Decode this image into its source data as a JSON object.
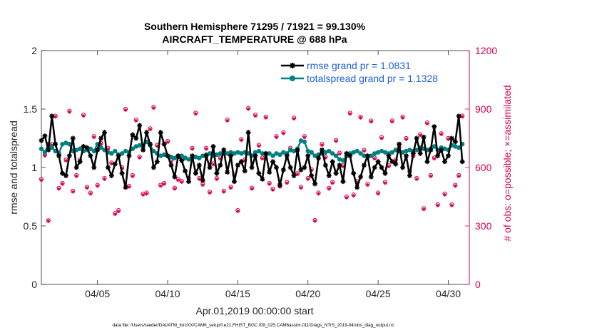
{
  "chart_data": {
    "type": "line",
    "title": "Southern Hemisphere 71295 / 71921 = 99.130%",
    "subtitle": "AIRCRAFT_TEMPERATURE @ 688 hPa",
    "xlabel": "Apr.01,2019 00:00:00 start",
    "ylabel": "rmse and totalspread",
    "y2label": "# of obs: o=possible; ×=assimilated",
    "footer": "data file: /Users/raeder/DAI/ATM_forcXX/CAM6_setup/f.e21.FHIST_BGC.f09_025.CAM6assim.011/Diags_NTrS_2019-04/obs_diag_output.nc",
    "xlim": [
      1,
      31.5
    ],
    "ylim": [
      0,
      2
    ],
    "y2lim": [
      0,
      1200
    ],
    "x_ticks": [
      5,
      10,
      15,
      20,
      25,
      30
    ],
    "x_tick_labels": [
      "04/05",
      "04/10",
      "04/15",
      "04/20",
      "04/25",
      "04/30"
    ],
    "y_ticks": [
      0,
      0.5,
      1,
      1.5,
      2
    ],
    "y_tick_labels": [
      "0",
      "0.5",
      "1",
      "1.5",
      "2"
    ],
    "y2_ticks": [
      0,
      300,
      600,
      900,
      1200
    ],
    "y2_tick_labels": [
      "0",
      "300",
      "600",
      "900",
      "1200"
    ],
    "legend_position": "top-right",
    "colors": {
      "rmse": "#000000",
      "spread": "#008080",
      "obs": "#d6004e",
      "axis": "#262626"
    },
    "series": [
      {
        "name": "rmse grand pr = 1.0831",
        "axis": "left",
        "x": [
          1.0,
          1.25,
          1.5,
          1.75,
          2.0,
          2.25,
          2.5,
          2.75,
          3.0,
          3.25,
          3.5,
          3.75,
          4.0,
          4.25,
          4.5,
          4.75,
          5.0,
          5.25,
          5.5,
          5.75,
          6.0,
          6.25,
          6.5,
          6.75,
          7.0,
          7.25,
          7.5,
          7.75,
          8.0,
          8.25,
          8.5,
          8.75,
          9.0,
          9.25,
          9.5,
          9.75,
          10.0,
          10.25,
          10.5,
          10.75,
          11.0,
          11.25,
          11.5,
          11.75,
          12.0,
          12.25,
          12.5,
          12.75,
          13.0,
          13.25,
          13.5,
          13.75,
          14.0,
          14.25,
          14.5,
          14.75,
          15.0,
          15.25,
          15.5,
          15.75,
          16.0,
          16.25,
          16.5,
          16.75,
          17.0,
          17.25,
          17.5,
          17.75,
          18.0,
          18.25,
          18.5,
          18.75,
          19.0,
          19.25,
          19.5,
          19.75,
          20.0,
          20.25,
          20.5,
          20.75,
          21.0,
          21.25,
          21.5,
          21.75,
          22.0,
          22.25,
          22.5,
          22.75,
          23.0,
          23.25,
          23.5,
          23.75,
          24.0,
          24.25,
          24.5,
          24.75,
          25.0,
          25.25,
          25.5,
          25.75,
          26.0,
          26.25,
          26.5,
          26.75,
          27.0,
          27.25,
          27.5,
          27.75,
          28.0,
          28.25,
          28.5,
          28.75,
          29.0,
          29.25,
          29.5,
          29.75,
          30.0,
          30.25,
          30.5,
          30.75,
          31.0
        ],
        "values": [
          1.23,
          1.27,
          1.15,
          1.44,
          1.2,
          1.1,
          0.95,
          0.93,
          1.1,
          1.25,
          1.0,
          1.05,
          1.18,
          1.17,
          1.1,
          1.0,
          1.15,
          1.25,
          1.3,
          1.0,
          0.93,
          1.03,
          1.1,
          0.95,
          0.83,
          1.1,
          1.28,
          1.25,
          1.36,
          1.15,
          1.3,
          1.2,
          1.0,
          1.05,
          1.3,
          1.2,
          1.1,
          1.02,
          0.92,
          1.1,
          1.06,
          0.97,
          0.88,
          1.1,
          0.95,
          1.02,
          0.89,
          1.1,
          1.0,
          1.18,
          0.95,
          1.02,
          1.15,
          0.96,
          1.1,
          0.88,
          1.02,
          1.05,
          0.97,
          1.3,
          1.0,
          1.1,
          0.95,
          0.9,
          1.12,
          0.96,
          1.05,
          1.0,
          0.85,
          0.98,
          1.1,
          1.0,
          0.93,
          1.15,
          0.98,
          1.0,
          1.1,
          0.93,
          0.86,
          1.08,
          1.15,
          1.02,
          0.93,
          1.05,
          0.95,
          1.02,
          0.88,
          1.12,
          1.1,
          0.95,
          0.83,
          0.92,
          1.02,
          1.1,
          0.92,
          1.0,
          1.05,
          1.0,
          0.95,
          1.1,
          1.05,
          1.03,
          1.2,
          1.0,
          1.1,
          0.93,
          1.12,
          1.25,
          1.12,
          1.26,
          1.05,
          1.15,
          1.35,
          1.1,
          1.15,
          1.05,
          1.1,
          1.25,
          1.22,
          1.44,
          1.05
        ]
      },
      {
        "name": "totalspread grand pr = 1.1328",
        "axis": "left",
        "x": [
          1.0,
          1.25,
          1.5,
          1.75,
          2.0,
          2.25,
          2.5,
          2.75,
          3.0,
          3.25,
          3.5,
          3.75,
          4.0,
          4.25,
          4.5,
          4.75,
          5.0,
          5.25,
          5.5,
          5.75,
          6.0,
          6.25,
          6.5,
          6.75,
          7.0,
          7.25,
          7.5,
          7.75,
          8.0,
          8.25,
          8.5,
          8.75,
          9.0,
          9.25,
          9.5,
          9.75,
          10.0,
          10.25,
          10.5,
          10.75,
          11.0,
          11.25,
          11.5,
          11.75,
          12.0,
          12.25,
          12.5,
          12.75,
          13.0,
          13.25,
          13.5,
          13.75,
          14.0,
          14.25,
          14.5,
          14.75,
          15.0,
          15.25,
          15.5,
          15.75,
          16.0,
          16.25,
          16.5,
          16.75,
          17.0,
          17.25,
          17.5,
          17.75,
          18.0,
          18.25,
          18.5,
          18.75,
          19.0,
          19.25,
          19.5,
          19.75,
          20.0,
          20.25,
          20.5,
          20.75,
          21.0,
          21.25,
          21.5,
          21.75,
          22.0,
          22.25,
          22.5,
          22.75,
          23.0,
          23.25,
          23.5,
          23.75,
          24.0,
          24.25,
          24.5,
          24.75,
          25.0,
          25.25,
          25.5,
          25.75,
          26.0,
          26.25,
          26.5,
          26.75,
          27.0,
          27.25,
          27.5,
          27.75,
          28.0,
          28.25,
          28.5,
          28.75,
          29.0,
          29.25,
          29.5,
          29.75,
          30.0,
          30.25,
          30.5,
          30.75,
          31.0
        ],
        "values": [
          1.16,
          1.13,
          1.2,
          1.17,
          1.14,
          1.12,
          1.2,
          1.21,
          1.2,
          1.14,
          1.15,
          1.16,
          1.14,
          1.15,
          1.16,
          1.14,
          1.2,
          1.17,
          1.15,
          1.13,
          1.12,
          1.14,
          1.11,
          1.12,
          1.14,
          1.13,
          1.16,
          1.18,
          1.19,
          1.18,
          1.22,
          1.19,
          1.14,
          1.12,
          1.1,
          1.11,
          1.1,
          1.09,
          1.08,
          1.09,
          1.1,
          1.08,
          1.07,
          1.08,
          1.09,
          1.08,
          1.1,
          1.11,
          1.12,
          1.1,
          1.11,
          1.12,
          1.13,
          1.12,
          1.13,
          1.12,
          1.13,
          1.12,
          1.13,
          1.12,
          1.1,
          1.13,
          1.14,
          1.12,
          1.11,
          1.12,
          1.1,
          1.12,
          1.11,
          1.13,
          1.12,
          1.15,
          1.14,
          1.16,
          1.23,
          1.22,
          1.14,
          1.13,
          1.1,
          1.11,
          1.12,
          1.13,
          1.14,
          1.12,
          1.1,
          1.07,
          1.06,
          1.1,
          1.12,
          1.13,
          1.14,
          1.12,
          1.1,
          1.09,
          1.1,
          1.12,
          1.13,
          1.14,
          1.13,
          1.12,
          1.13,
          1.15,
          1.14,
          1.13,
          1.14,
          1.15,
          1.14,
          1.15,
          1.17,
          1.16,
          1.15,
          1.16,
          1.18,
          1.15,
          1.17,
          1.16,
          1.15,
          1.19,
          1.18,
          1.17,
          1.2
        ]
      },
      {
        "name": "possible",
        "axis": "right",
        "marker": "circle",
        "x": [
          1.0,
          1.25,
          1.5,
          1.75,
          2.0,
          2.25,
          2.5,
          2.75,
          3.0,
          3.25,
          3.5,
          3.75,
          4.0,
          4.25,
          4.5,
          4.75,
          5.0,
          5.25,
          5.5,
          5.75,
          6.0,
          6.25,
          6.5,
          6.75,
          7.0,
          7.25,
          7.5,
          7.75,
          8.0,
          8.25,
          8.5,
          8.75,
          9.0,
          9.25,
          9.5,
          9.75,
          10.0,
          10.25,
          10.5,
          10.75,
          11.0,
          11.25,
          11.5,
          11.75,
          12.0,
          12.25,
          12.5,
          12.75,
          13.0,
          13.25,
          13.5,
          13.75,
          14.0,
          14.25,
          14.5,
          14.75,
          15.0,
          15.25,
          15.5,
          15.75,
          16.0,
          16.25,
          16.5,
          16.75,
          17.0,
          17.25,
          17.5,
          17.75,
          18.0,
          18.25,
          18.5,
          18.75,
          19.0,
          19.25,
          19.5,
          19.75,
          20.0,
          20.25,
          20.5,
          20.75,
          21.0,
          21.25,
          21.5,
          21.75,
          22.0,
          22.25,
          22.5,
          22.75,
          23.0,
          23.25,
          23.5,
          23.75,
          24.0,
          24.25,
          24.5,
          24.75,
          25.0,
          25.25,
          25.5,
          25.75,
          26.0,
          26.25,
          26.5,
          26.75,
          27.0,
          27.25,
          27.5,
          27.75,
          28.0,
          28.25,
          28.5,
          28.75,
          29.0,
          29.25,
          29.5,
          29.75,
          30.0,
          30.25,
          30.5,
          30.75,
          31.0
        ],
        "values": [
          540,
          665,
          328,
          720,
          865,
          495,
          520,
          640,
          890,
          480,
          560,
          640,
          870,
          500,
          470,
          760,
          510,
          725,
          545,
          700,
          625,
          365,
          380,
          600,
          900,
          505,
          560,
          845,
          655,
          465,
          470,
          800,
          910,
          715,
          510,
          520,
          735,
          635,
          495,
          540,
          530,
          650,
          545,
          700,
          880,
          545,
          515,
          700,
          475,
          620,
          545,
          650,
          480,
          845,
          500,
          565,
          380,
          745,
          640,
          905,
          495,
          870,
          715,
          650,
          860,
          520,
          490,
          760,
          505,
          780,
          525,
          700,
          855,
          570,
          500,
          760,
          545,
          590,
          330,
          470,
          720,
          655,
          495,
          525,
          740,
          675,
          610,
          450,
          880,
          460,
          530,
          860,
          690,
          515,
          840,
          650,
          470,
          755,
          525,
          610,
          840,
          640,
          705,
          860,
          750,
          580,
          660,
          545,
          770,
          390,
          830,
          560,
          650,
          410,
          775,
          465,
          750,
          410,
          510,
          560,
          865
        ]
      },
      {
        "name": "assimilated",
        "axis": "right",
        "marker": "asterisk",
        "x": [
          1.0,
          1.25,
          1.5,
          1.75,
          2.0,
          2.25,
          2.5,
          2.75,
          3.0,
          3.25,
          3.5,
          3.75,
          4.0,
          4.25,
          4.5,
          4.75,
          5.0,
          5.25,
          5.5,
          5.75,
          6.0,
          6.25,
          6.5,
          6.75,
          7.0,
          7.25,
          7.5,
          7.75,
          8.0,
          8.25,
          8.5,
          8.75,
          9.0,
          9.25,
          9.5,
          9.75,
          10.0,
          10.25,
          10.5,
          10.75,
          11.0,
          11.25,
          11.5,
          11.75,
          12.0,
          12.25,
          12.5,
          12.75,
          13.0,
          13.25,
          13.5,
          13.75,
          14.0,
          14.25,
          14.5,
          14.75,
          15.0,
          15.25,
          15.5,
          15.75,
          16.0,
          16.25,
          16.5,
          16.75,
          17.0,
          17.25,
          17.5,
          17.75,
          18.0,
          18.25,
          18.5,
          18.75,
          19.0,
          19.25,
          19.5,
          19.75,
          20.0,
          20.25,
          20.5,
          20.75,
          21.0,
          21.25,
          21.5,
          21.75,
          22.0,
          22.25,
          22.5,
          22.75,
          23.0,
          23.25,
          23.5,
          23.75,
          24.0,
          24.25,
          24.5,
          24.75,
          25.0,
          25.25,
          25.5,
          25.75,
          26.0,
          26.25,
          26.5,
          26.75,
          27.0,
          27.25,
          27.5,
          27.75,
          28.0,
          28.25,
          28.5,
          28.75,
          29.0,
          29.25,
          29.5,
          29.75,
          30.0,
          30.25,
          30.5,
          30.75,
          31.0
        ],
        "values": [
          535,
          660,
          325,
          715,
          860,
          490,
          515,
          635,
          885,
          475,
          555,
          635,
          865,
          495,
          465,
          755,
          505,
          720,
          540,
          695,
          620,
          360,
          375,
          595,
          895,
          500,
          555,
          840,
          650,
          460,
          465,
          795,
          905,
          710,
          505,
          515,
          730,
          630,
          490,
          535,
          525,
          645,
          540,
          695,
          875,
          540,
          510,
          695,
          470,
          615,
          540,
          645,
          475,
          840,
          495,
          560,
          375,
          740,
          635,
          900,
          490,
          865,
          710,
          645,
          855,
          515,
          485,
          755,
          500,
          775,
          520,
          695,
          850,
          565,
          495,
          755,
          540,
          585,
          325,
          465,
          715,
          650,
          490,
          520,
          735,
          670,
          605,
          445,
          875,
          455,
          525,
          855,
          685,
          510,
          835,
          645,
          465,
          750,
          520,
          605,
          835,
          635,
          700,
          855,
          745,
          575,
          655,
          540,
          765,
          385,
          825,
          555,
          645,
          405,
          770,
          460,
          745,
          405,
          505,
          555,
          860
        ]
      }
    ]
  }
}
